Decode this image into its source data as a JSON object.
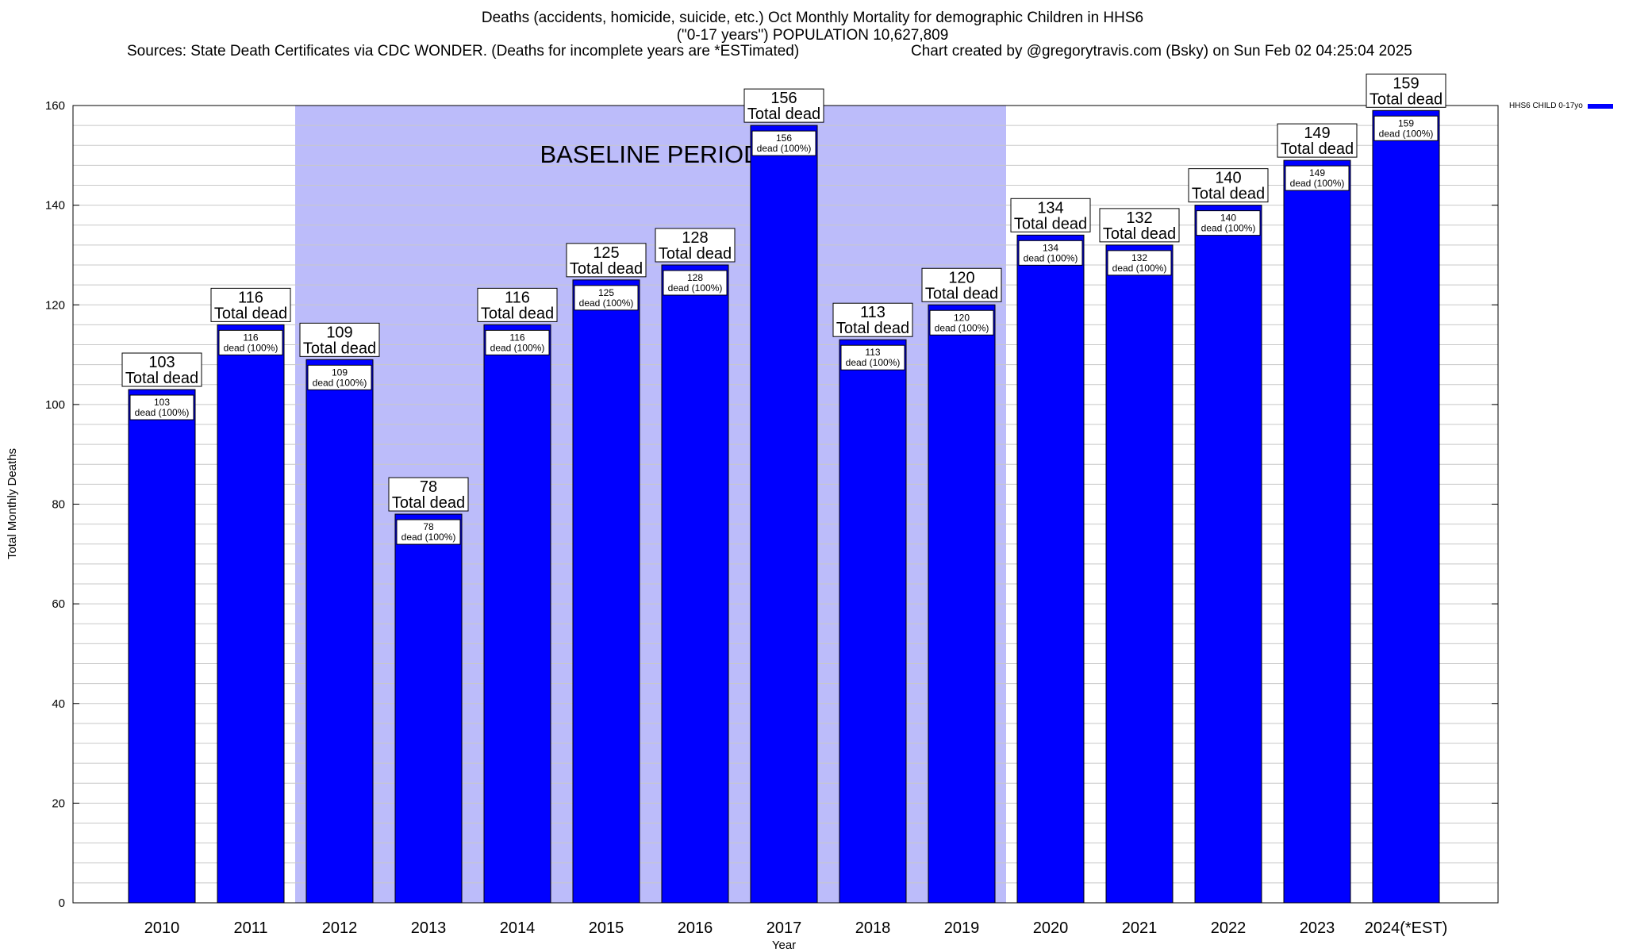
{
  "titles": {
    "line1": "Deaths (accidents, homicide, suicide, etc.) Oct Monthly Mortality for demographic Children in HHS6",
    "line2": "(\"0-17 years\") POPULATION 10,627,809",
    "sources": "Sources: State Death Certificates via CDC WONDER. (Deaths for incomplete years are *ESTimated)",
    "credit": "Chart created by @gregorytravis.com (Bsky) on Sun Feb 02 04:25:04 2025"
  },
  "chart_data": {
    "type": "bar",
    "xlabel": "Year",
    "ylabel": "Total Monthly Deaths",
    "ylim": [
      0,
      160
    ],
    "y_ticks": [
      "0",
      "20",
      "40",
      "60",
      "80",
      "100",
      "120",
      "140",
      "160"
    ],
    "grid": true,
    "categories": [
      "2010",
      "2011",
      "2012",
      "2013",
      "2014",
      "2015",
      "2016",
      "2017",
      "2018",
      "2019",
      "2020",
      "2021",
      "2022",
      "2023",
      "2024(*EST)"
    ],
    "series": [
      {
        "name": "HHS6 CHILD 0-17yo",
        "values": [
          103,
          116,
          109,
          78,
          116,
          125,
          128,
          156,
          113,
          120,
          134,
          132,
          140,
          149,
          159
        ],
        "color": "#0000ff"
      }
    ],
    "top_labels": [
      "103\nTotal dead",
      "116\nTotal dead",
      "109\nTotal dead",
      "78\nTotal dead",
      "116\nTotal dead",
      "125\nTotal dead",
      "128\nTotal dead",
      "156\nTotal dead",
      "113\nTotal dead",
      "120\nTotal dead",
      "134\nTotal dead",
      "132\nTotal dead",
      "140\nTotal dead",
      "149\nTotal dead",
      "159\nTotal dead"
    ],
    "inner_labels": [
      "103\ndead (100%)",
      "116\ndead (100%)",
      "109\ndead (100%)",
      "78\ndead (100%)",
      "116\ndead (100%)",
      "125\ndead (100%)",
      "128\ndead (100%)",
      "156\ndead (100%)",
      "113\ndead (100%)",
      "120\ndead (100%)",
      "134\ndead (100%)",
      "132\ndead (100%)",
      "140\ndead (100%)",
      "149\ndead (100%)",
      "159\ndead (100%)"
    ],
    "shaded_region": {
      "label": "BASELINE PERIOD",
      "from": "2012",
      "to": "2019",
      "color": "#bcbcfa"
    },
    "legend_position": "top-right"
  }
}
